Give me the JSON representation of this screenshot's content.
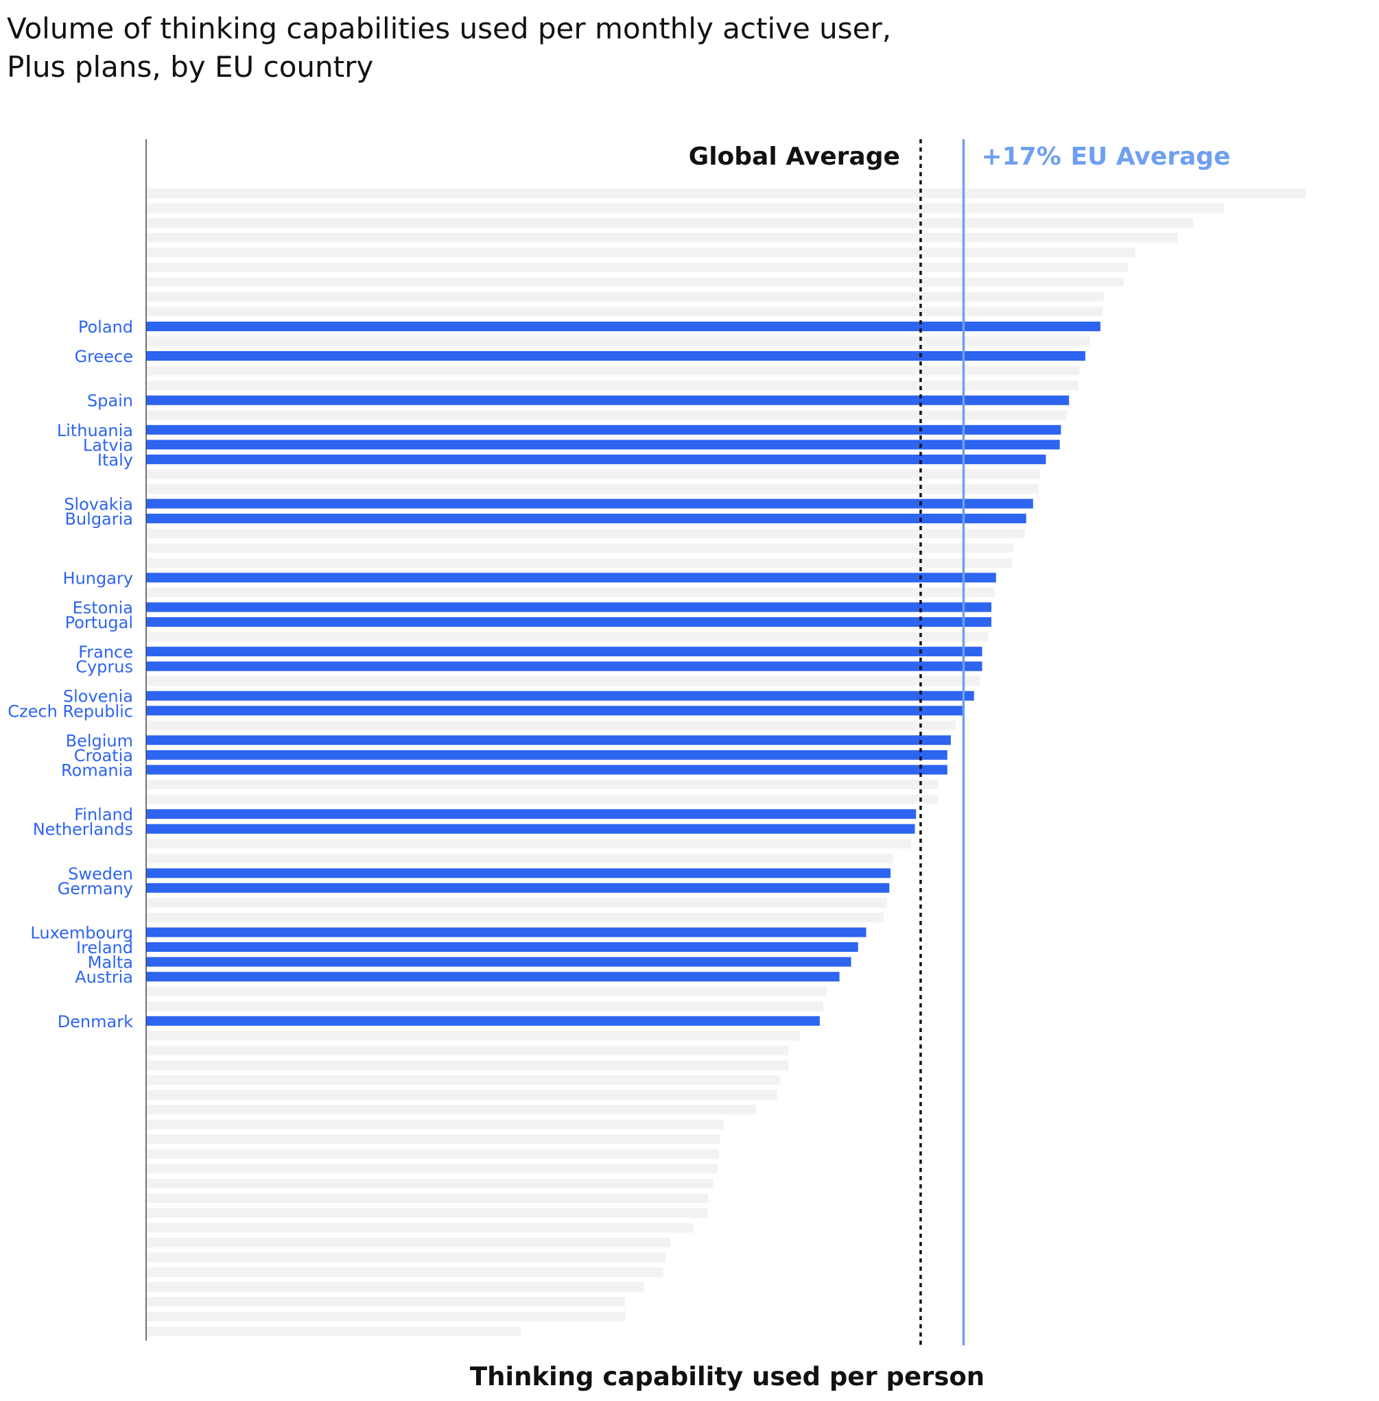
{
  "title_lines": [
    "Volume of thinking capabilities used per monthly active user,",
    "Plus plans, by EU country"
  ],
  "chart_data": {
    "type": "bar",
    "orientation": "horizontal",
    "xlabel": "Thinking capability used per person",
    "xlim": [
      0,
      100
    ],
    "grid": false,
    "highlight_color": "#2d64f0",
    "background_bar_color": "#f2f2f2",
    "label_color": "#2d64f0",
    "bars": [
      {
        "label": "",
        "value": 100,
        "highlighted": false
      },
      {
        "label": "",
        "value": 93,
        "highlighted": false
      },
      {
        "label": "",
        "value": 90.3,
        "highlighted": false
      },
      {
        "label": "",
        "value": 89,
        "highlighted": false
      },
      {
        "label": "",
        "value": 85.3,
        "highlighted": false
      },
      {
        "label": "",
        "value": 84.7,
        "highlighted": false
      },
      {
        "label": "",
        "value": 84.3,
        "highlighted": false
      },
      {
        "label": "",
        "value": 82.6,
        "highlighted": false
      },
      {
        "label": "",
        "value": 82.5,
        "highlighted": false
      },
      {
        "label": "Poland",
        "value": 82.3,
        "highlighted": true
      },
      {
        "label": "",
        "value": 81.4,
        "highlighted": false
      },
      {
        "label": "Greece",
        "value": 81,
        "highlighted": true
      },
      {
        "label": "",
        "value": 80.5,
        "highlighted": false
      },
      {
        "label": "",
        "value": 80.4,
        "highlighted": false
      },
      {
        "label": "Spain",
        "value": 79.6,
        "highlighted": true
      },
      {
        "label": "",
        "value": 79.4,
        "highlighted": false
      },
      {
        "label": "Lithuania",
        "value": 78.9,
        "highlighted": true
      },
      {
        "label": "Latvia",
        "value": 78.8,
        "highlighted": true
      },
      {
        "label": "Italy",
        "value": 77.6,
        "highlighted": true
      },
      {
        "label": "",
        "value": 77.1,
        "highlighted": false
      },
      {
        "label": "",
        "value": 77,
        "highlighted": false
      },
      {
        "label": "Slovakia",
        "value": 76.5,
        "highlighted": true
      },
      {
        "label": "Bulgaria",
        "value": 75.9,
        "highlighted": true
      },
      {
        "label": "",
        "value": 75.8,
        "highlighted": false
      },
      {
        "label": "",
        "value": 74.8,
        "highlighted": false
      },
      {
        "label": "",
        "value": 74.7,
        "highlighted": false
      },
      {
        "label": "Hungary",
        "value": 73.3,
        "highlighted": true
      },
      {
        "label": "",
        "value": 73.2,
        "highlighted": false
      },
      {
        "label": "Estonia",
        "value": 72.9,
        "highlighted": true
      },
      {
        "label": "Portugal",
        "value": 72.9,
        "highlighted": true
      },
      {
        "label": "",
        "value": 72.6,
        "highlighted": false
      },
      {
        "label": "France",
        "value": 72.1,
        "highlighted": true
      },
      {
        "label": "Cyprus",
        "value": 72.1,
        "highlighted": true
      },
      {
        "label": "",
        "value": 71.9,
        "highlighted": false
      },
      {
        "label": "Slovenia",
        "value": 71.4,
        "highlighted": true
      },
      {
        "label": "Czech Republic",
        "value": 70.5,
        "highlighted": true
      },
      {
        "label": "",
        "value": 69.8,
        "highlighted": false
      },
      {
        "label": "Belgium",
        "value": 69.4,
        "highlighted": true
      },
      {
        "label": "Croatia",
        "value": 69.1,
        "highlighted": true
      },
      {
        "label": "Romania",
        "value": 69.1,
        "highlighted": true
      },
      {
        "label": "",
        "value": 68.3,
        "highlighted": false
      },
      {
        "label": "",
        "value": 68.3,
        "highlighted": false
      },
      {
        "label": "Finland",
        "value": 66.4,
        "highlighted": true
      },
      {
        "label": "Netherlands",
        "value": 66.3,
        "highlighted": true
      },
      {
        "label": "",
        "value": 66,
        "highlighted": false
      },
      {
        "label": "",
        "value": 64.4,
        "highlighted": false
      },
      {
        "label": "Sweden",
        "value": 64.2,
        "highlighted": true
      },
      {
        "label": "Germany",
        "value": 64.1,
        "highlighted": true
      },
      {
        "label": "",
        "value": 63.9,
        "highlighted": false
      },
      {
        "label": "",
        "value": 63.6,
        "highlighted": false
      },
      {
        "label": "Luxembourg",
        "value": 62.1,
        "highlighted": true
      },
      {
        "label": "Ireland",
        "value": 61.4,
        "highlighted": true
      },
      {
        "label": "Malta",
        "value": 60.8,
        "highlighted": true
      },
      {
        "label": "Austria",
        "value": 59.8,
        "highlighted": true
      },
      {
        "label": "",
        "value": 58.7,
        "highlighted": false
      },
      {
        "label": "",
        "value": 58.4,
        "highlighted": false
      },
      {
        "label": "Denmark",
        "value": 58.1,
        "highlighted": true
      },
      {
        "label": "",
        "value": 56.4,
        "highlighted": false
      },
      {
        "label": "",
        "value": 55.4,
        "highlighted": false
      },
      {
        "label": "",
        "value": 55.4,
        "highlighted": false
      },
      {
        "label": "",
        "value": 54.7,
        "highlighted": false
      },
      {
        "label": "",
        "value": 54.4,
        "highlighted": false
      },
      {
        "label": "",
        "value": 52.6,
        "highlighted": false
      },
      {
        "label": "",
        "value": 49.8,
        "highlighted": false
      },
      {
        "label": "",
        "value": 49.5,
        "highlighted": false
      },
      {
        "label": "",
        "value": 49.4,
        "highlighted": false
      },
      {
        "label": "",
        "value": 49.3,
        "highlighted": false
      },
      {
        "label": "",
        "value": 48.9,
        "highlighted": false
      },
      {
        "label": "",
        "value": 48.5,
        "highlighted": false
      },
      {
        "label": "",
        "value": 48.4,
        "highlighted": false
      },
      {
        "label": "",
        "value": 47.2,
        "highlighted": false
      },
      {
        "label": "",
        "value": 45.2,
        "highlighted": false
      },
      {
        "label": "",
        "value": 44.8,
        "highlighted": false
      },
      {
        "label": "",
        "value": 44.6,
        "highlighted": false
      },
      {
        "label": "",
        "value": 42.9,
        "highlighted": false
      },
      {
        "label": "",
        "value": 41.3,
        "highlighted": false
      },
      {
        "label": "",
        "value": 41.3,
        "highlighted": false
      },
      {
        "label": "",
        "value": 32.3,
        "highlighted": false
      }
    ],
    "reference_lines": [
      {
        "name": "Global Average",
        "value": 66.8,
        "style": "dotted",
        "color": "#111111"
      },
      {
        "name": "EU Average",
        "value": 70.5,
        "style": "solid",
        "color": "#6f9ff0",
        "annotation": "+17%"
      }
    ]
  }
}
